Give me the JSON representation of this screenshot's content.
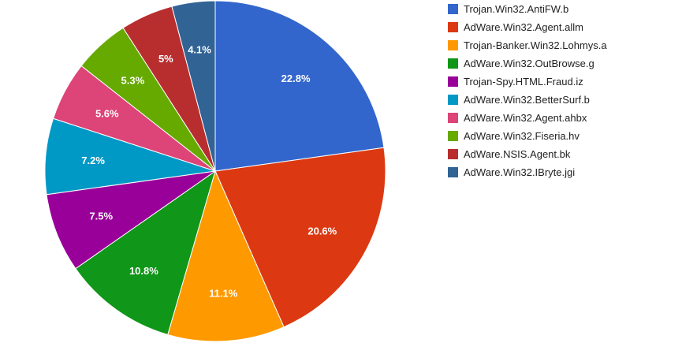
{
  "chart_data": {
    "type": "pie",
    "categories": [
      "Trojan.Win32.AntiFW.b",
      "AdWare.Win32.Agent.allm",
      "Trojan-Banker.Win32.Lohmys.a",
      "AdWare.Win32.OutBrowse.g",
      "Trojan-Spy.HTML.Fraud.iz",
      "AdWare.Win32.BetterSurf.b",
      "AdWare.Win32.Agent.ahbx",
      "AdWare.Win32.Fiseria.hv",
      "AdWare.NSIS.Agent.bk",
      "AdWare.Win32.IBryte.jgi"
    ],
    "values": [
      22.8,
      20.6,
      11.1,
      10.8,
      7.5,
      7.2,
      5.6,
      5.3,
      5,
      4.1
    ],
    "labels": [
      "22.8%",
      "20.6%",
      "11.1%",
      "10.8%",
      "7.5%",
      "7.2%",
      "5.6%",
      "5.3%",
      "5%",
      "4.1%"
    ],
    "colors": [
      "#3366cc",
      "#dc3912",
      "#ff9900",
      "#109618",
      "#990099",
      "#0099c6",
      "#dd4477",
      "#66aa00",
      "#b82e2e",
      "#316395"
    ],
    "legend_position": "right",
    "title": ""
  }
}
